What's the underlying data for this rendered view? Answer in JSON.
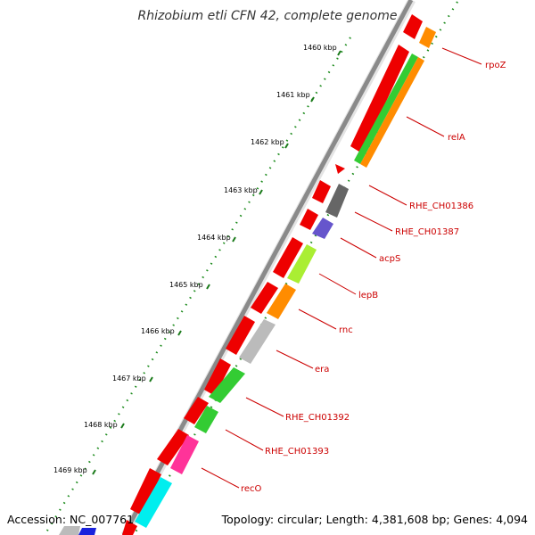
{
  "title": "Rhizobium etli CFN 42, complete genome",
  "footer": {
    "accession": "Accession: NC_007761",
    "summary": "Topology: circular; Length: 4,381,608 bp; Genes: 4,094"
  },
  "kbp_labels": [
    "1460 kbp",
    "1461 kbp",
    "1462 kbp",
    "1463 kbp",
    "1464 kbp",
    "1465 kbp",
    "1466 kbp",
    "1467 kbp",
    "1468 kbp",
    "1469 kbp"
  ],
  "gene_labels": [
    "rpoZ",
    "relA",
    "RHE_CH01386",
    "RHE_CH01387",
    "acpS",
    "lepB",
    "rnc",
    "era",
    "RHE_CH01392",
    "RHE_CH01393",
    "recO"
  ],
  "colors": {
    "backbone": "#8a8a8a",
    "tick": "#1a7a1a",
    "label": "#cc0000",
    "rpoZ": "#ff8c00",
    "relA_green": "#33cc33",
    "relA_orange": "#ff8c00",
    "RHE_CH01386": "#666666",
    "RHE_CH01387": "#6655cc",
    "acpS": "#aaee33",
    "lepB": "#ff8c00",
    "rnc": "#bbbbbb",
    "era": "#33cc33",
    "RHE_CH01392": "#33cc33",
    "RHE_CH01393": "#ff3399",
    "recO": "#00eeee",
    "minus_strand": "#ee0000"
  }
}
